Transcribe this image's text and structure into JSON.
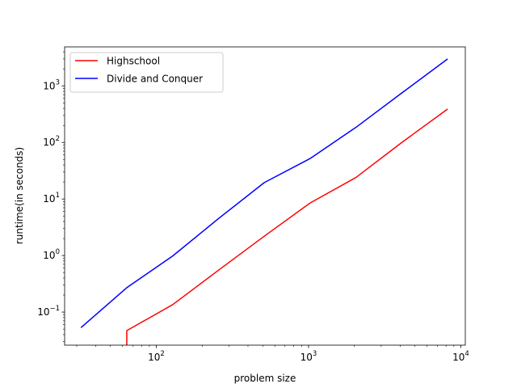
{
  "chart_data": {
    "type": "line",
    "xlabel": "problem size",
    "ylabel": "runtime(in seconds)",
    "xscale": "log",
    "yscale": "log",
    "xlim": [
      25,
      10700
    ],
    "ylim": [
      0.026,
      4900
    ],
    "x_tick_values": [
      100,
      1000,
      10000
    ],
    "x_tick_labels": [
      [
        "10",
        "2"
      ],
      [
        "10",
        "3"
      ],
      [
        "10",
        "4"
      ]
    ],
    "y_tick_values": [
      0.1,
      1,
      10,
      100,
      1000
    ],
    "y_tick_labels": [
      [
        "10",
        "−1"
      ],
      [
        "10",
        "0"
      ],
      [
        "10",
        "1"
      ],
      [
        "10",
        "2"
      ],
      [
        "10",
        "3"
      ]
    ],
    "legend_position": "top-left",
    "series": [
      {
        "name": "Highschool",
        "color": "#ff0000",
        "x": [
          64,
          64,
          128,
          256,
          512,
          1024,
          2048,
          4096,
          8192
        ],
        "y": [
          0.02,
          0.047,
          0.135,
          0.55,
          2.2,
          8.5,
          24,
          100,
          390
        ]
      },
      {
        "name": "Divide and Conquer",
        "color": "#0000ff",
        "x": [
          32,
          64,
          128,
          256,
          512,
          1024,
          2048,
          4096,
          8192
        ],
        "y": [
          0.053,
          0.27,
          0.98,
          4.5,
          19.5,
          52,
          185,
          750,
          3000
        ]
      }
    ]
  }
}
